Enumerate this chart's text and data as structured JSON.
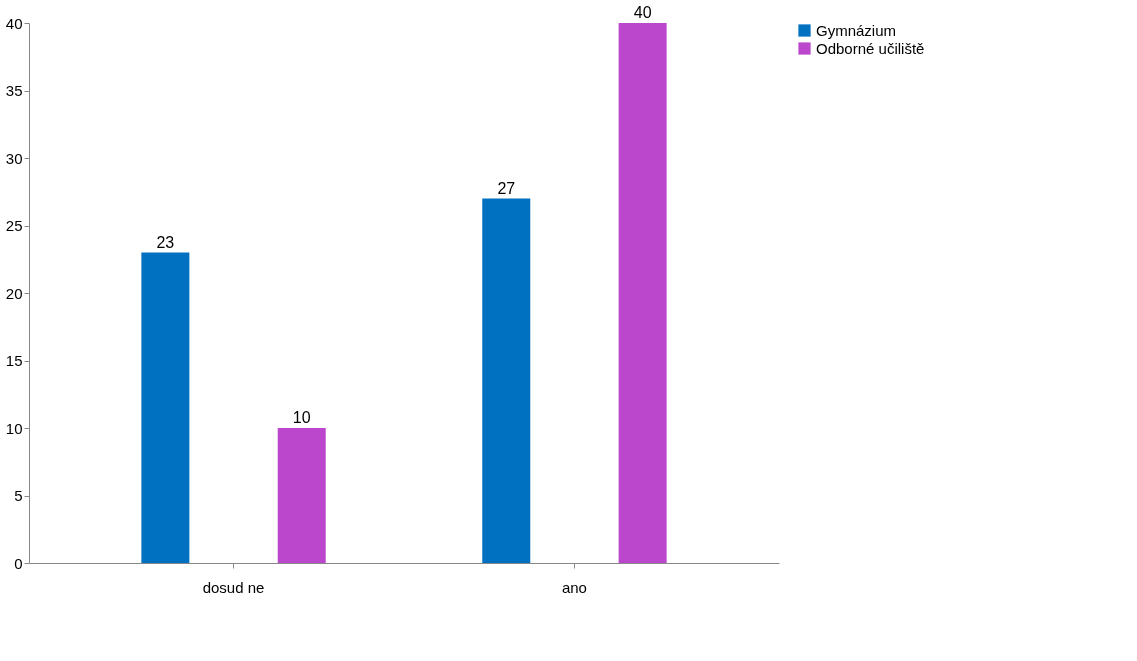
{
  "chart_data": {
    "type": "bar",
    "categories": [
      "dosud ne",
      "ano"
    ],
    "series": [
      {
        "name": "Gymnázium",
        "color": "#0070c0",
        "values": [
          23,
          27
        ]
      },
      {
        "name": "Odborné učiliště",
        "color": "#bb48cc",
        "values": [
          10,
          40
        ]
      }
    ],
    "ylim": [
      0,
      40
    ],
    "yticks": [
      0,
      5,
      10,
      15,
      20,
      25,
      30,
      35,
      40
    ],
    "data_labels": true,
    "grid": false,
    "legend": "right"
  }
}
